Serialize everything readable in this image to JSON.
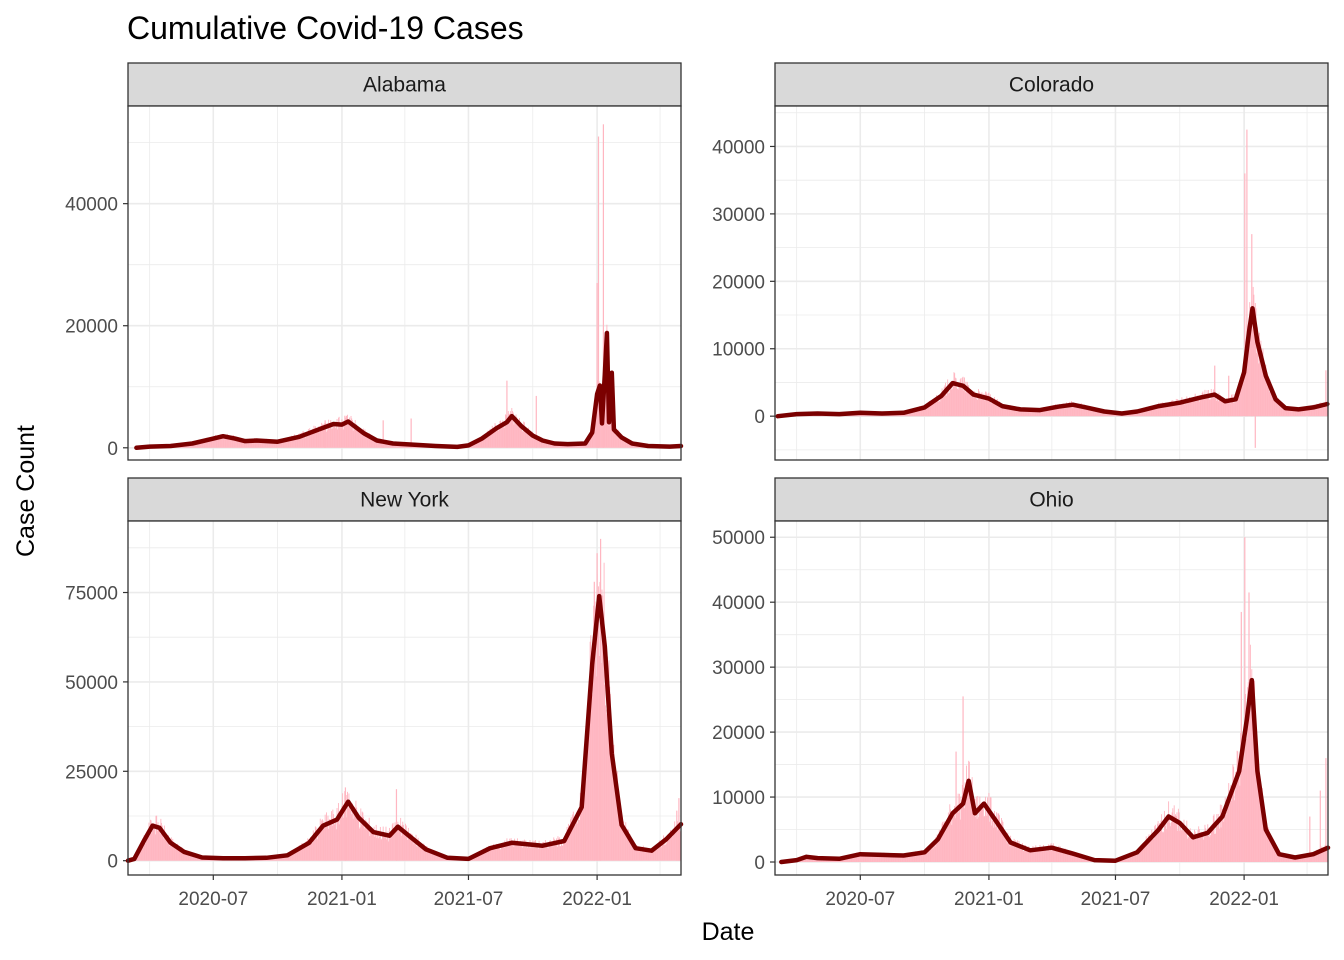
{
  "chart_data": {
    "type": "bar",
    "title": "Cumulative Covid-19 Cases",
    "xlabel": "Date",
    "ylabel": "Case Count",
    "grid": true,
    "legend": "none",
    "colors": {
      "bars": "#ffb6c1",
      "line": "#7b0000",
      "strip": "#d9d9d9",
      "grid": "#ebebeb"
    },
    "x_tick_labels": [
      "2020-07",
      "2021-01",
      "2021-07",
      "2022-01"
    ],
    "x_range": [
      "2020-03-01",
      "2022-05-01"
    ],
    "panels": [
      {
        "name": "Alabama",
        "ylim": [
          -2000,
          56000
        ],
        "y_ticks": [
          0,
          20000,
          40000
        ],
        "y_tick_labels": [
          "0",
          "20000",
          "40000"
        ],
        "smooth": [
          [
            "2020-03-13",
            0
          ],
          [
            "2020-04-01",
            200
          ],
          [
            "2020-05-01",
            300
          ],
          [
            "2020-06-01",
            700
          ],
          [
            "2020-07-01",
            1500
          ],
          [
            "2020-07-15",
            1900
          ],
          [
            "2020-08-01",
            1500
          ],
          [
            "2020-08-15",
            1100
          ],
          [
            "2020-09-01",
            1200
          ],
          [
            "2020-10-01",
            1000
          ],
          [
            "2020-11-01",
            1800
          ],
          [
            "2020-12-01",
            3100
          ],
          [
            "2020-12-20",
            3900
          ],
          [
            "2021-01-01",
            3800
          ],
          [
            "2021-01-10",
            4300
          ],
          [
            "2021-02-01",
            2400
          ],
          [
            "2021-02-20",
            1200
          ],
          [
            "2021-03-15",
            700
          ],
          [
            "2021-04-15",
            500
          ],
          [
            "2021-05-15",
            300
          ],
          [
            "2021-06-15",
            150
          ],
          [
            "2021-07-01",
            400
          ],
          [
            "2021-07-20",
            1500
          ],
          [
            "2021-08-10",
            3200
          ],
          [
            "2021-08-25",
            4200
          ],
          [
            "2021-09-01",
            5200
          ],
          [
            "2021-09-15",
            3500
          ],
          [
            "2021-10-01",
            2000
          ],
          [
            "2021-10-15",
            1200
          ],
          [
            "2021-11-01",
            700
          ],
          [
            "2021-11-20",
            600
          ],
          [
            "2021-12-15",
            700
          ],
          [
            "2021-12-25",
            2500
          ],
          [
            "2022-01-01",
            8800
          ],
          [
            "2022-01-05",
            10200
          ],
          [
            "2022-01-08",
            4000
          ],
          [
            "2022-01-12",
            12000
          ],
          [
            "2022-01-15",
            18800
          ],
          [
            "2022-01-18",
            4200
          ],
          [
            "2022-01-22",
            12300
          ],
          [
            "2022-01-25",
            3000
          ],
          [
            "2022-02-05",
            1700
          ],
          [
            "2022-02-20",
            700
          ],
          [
            "2022-03-15",
            300
          ],
          [
            "2022-04-15",
            200
          ],
          [
            "2022-05-01",
            300
          ]
        ],
        "spikes": [
          [
            "2022-01-03",
            51000
          ],
          [
            "2022-01-10",
            53000
          ],
          [
            "2022-01-01",
            27000
          ],
          [
            "2021-08-25",
            11000
          ],
          [
            "2021-10-06",
            8500
          ],
          [
            "2021-04-10",
            4800
          ],
          [
            "2021-03-01",
            4500
          ],
          [
            "2020-12-08",
            4500
          ]
        ]
      },
      {
        "name": "Colorado",
        "ylim": [
          -6500,
          46000
        ],
        "y_ticks": [
          0,
          10000,
          20000,
          30000,
          40000
        ],
        "y_tick_labels": [
          "0",
          "10000",
          "20000",
          "30000",
          "40000"
        ],
        "smooth": [
          [
            "2020-03-05",
            0
          ],
          [
            "2020-04-01",
            300
          ],
          [
            "2020-05-01",
            400
          ],
          [
            "2020-06-01",
            300
          ],
          [
            "2020-07-01",
            500
          ],
          [
            "2020-08-01",
            400
          ],
          [
            "2020-09-01",
            500
          ],
          [
            "2020-10-01",
            1300
          ],
          [
            "2020-10-25",
            3000
          ],
          [
            "2020-11-10",
            4900
          ],
          [
            "2020-11-25",
            4500
          ],
          [
            "2020-12-10",
            3200
          ],
          [
            "2021-01-01",
            2600
          ],
          [
            "2021-01-20",
            1500
          ],
          [
            "2021-02-15",
            1000
          ],
          [
            "2021-03-15",
            900
          ],
          [
            "2021-04-10",
            1400
          ],
          [
            "2021-05-01",
            1700
          ],
          [
            "2021-05-20",
            1300
          ],
          [
            "2021-06-15",
            700
          ],
          [
            "2021-07-10",
            400
          ],
          [
            "2021-08-01",
            700
          ],
          [
            "2021-09-01",
            1500
          ],
          [
            "2021-10-01",
            2000
          ],
          [
            "2021-11-01",
            2800
          ],
          [
            "2021-11-20",
            3200
          ],
          [
            "2021-12-05",
            2200
          ],
          [
            "2021-12-20",
            2500
          ],
          [
            "2022-01-01",
            6500
          ],
          [
            "2022-01-08",
            12500
          ],
          [
            "2022-01-13",
            16000
          ],
          [
            "2022-01-20",
            11000
          ],
          [
            "2022-02-01",
            6000
          ],
          [
            "2022-02-15",
            2500
          ],
          [
            "2022-03-01",
            1200
          ],
          [
            "2022-03-20",
            1000
          ],
          [
            "2022-04-10",
            1300
          ],
          [
            "2022-04-30",
            1800
          ]
        ],
        "spikes": [
          [
            "2022-01-05",
            42500
          ],
          [
            "2022-01-02",
            36000
          ],
          [
            "2022-01-12",
            27000
          ],
          [
            "2022-01-17",
            -4700
          ],
          [
            "2021-11-20",
            7500
          ],
          [
            "2022-04-28",
            6800
          ],
          [
            "2021-12-10",
            6000
          ]
        ]
      },
      {
        "name": "New York",
        "ylim": [
          -4000,
          95000
        ],
        "y_ticks": [
          0,
          25000,
          50000,
          75000
        ],
        "y_tick_labels": [
          "0",
          "25000",
          "50000",
          "75000"
        ],
        "smooth": [
          [
            "2020-03-01",
            0
          ],
          [
            "2020-03-10",
            500
          ],
          [
            "2020-03-25",
            6000
          ],
          [
            "2020-04-05",
            9800
          ],
          [
            "2020-04-15",
            9200
          ],
          [
            "2020-05-01",
            5000
          ],
          [
            "2020-05-20",
            2500
          ],
          [
            "2020-06-15",
            900
          ],
          [
            "2020-07-15",
            700
          ],
          [
            "2020-08-15",
            700
          ],
          [
            "2020-09-15",
            800
          ],
          [
            "2020-10-15",
            1500
          ],
          [
            "2020-11-15",
            5000
          ],
          [
            "2020-12-05",
            9800
          ],
          [
            "2020-12-25",
            11500
          ],
          [
            "2021-01-10",
            16500
          ],
          [
            "2021-01-25",
            12000
          ],
          [
            "2021-02-15",
            8000
          ],
          [
            "2021-03-10",
            7000
          ],
          [
            "2021-03-22",
            9500
          ],
          [
            "2021-04-10",
            6500
          ],
          [
            "2021-05-01",
            3200
          ],
          [
            "2021-06-01",
            800
          ],
          [
            "2021-07-01",
            500
          ],
          [
            "2021-08-01",
            3500
          ],
          [
            "2021-09-01",
            5000
          ],
          [
            "2021-10-15",
            4200
          ],
          [
            "2021-11-15",
            5500
          ],
          [
            "2021-12-10",
            15000
          ],
          [
            "2021-12-25",
            55000
          ],
          [
            "2022-01-04",
            74000
          ],
          [
            "2022-01-12",
            60000
          ],
          [
            "2022-01-22",
            30000
          ],
          [
            "2022-02-05",
            10000
          ],
          [
            "2022-02-25",
            3500
          ],
          [
            "2022-03-20",
            2800
          ],
          [
            "2022-04-10",
            6000
          ],
          [
            "2022-05-01",
            10200
          ]
        ],
        "spikes": [
          [
            "2022-01-01",
            86000
          ],
          [
            "2022-01-06",
            90000
          ],
          [
            "2021-12-28",
            78000
          ],
          [
            "2021-01-06",
            20500
          ],
          [
            "2021-03-20",
            20000
          ],
          [
            "2022-04-28",
            17500
          ],
          [
            "2022-04-25",
            14000
          ]
        ]
      },
      {
        "name": "Ohio",
        "ylim": [
          -2000,
          52500
        ],
        "y_ticks": [
          0,
          10000,
          20000,
          30000,
          40000,
          50000
        ],
        "y_tick_labels": [
          "0",
          "10000",
          "20000",
          "30000",
          "40000",
          "50000"
        ],
        "smooth": [
          [
            "2020-03-10",
            0
          ],
          [
            "2020-04-01",
            300
          ],
          [
            "2020-04-15",
            800
          ],
          [
            "2020-05-01",
            600
          ],
          [
            "2020-06-01",
            500
          ],
          [
            "2020-07-01",
            1200
          ],
          [
            "2020-08-01",
            1100
          ],
          [
            "2020-09-01",
            1000
          ],
          [
            "2020-10-01",
            1500
          ],
          [
            "2020-10-20",
            3500
          ],
          [
            "2020-11-10",
            7500
          ],
          [
            "2020-11-25",
            9000
          ],
          [
            "2020-12-03",
            12500
          ],
          [
            "2020-12-12",
            7500
          ],
          [
            "2020-12-25",
            9000
          ],
          [
            "2021-01-10",
            6500
          ],
          [
            "2021-02-01",
            3000
          ],
          [
            "2021-03-01",
            1800
          ],
          [
            "2021-04-01",
            2200
          ],
          [
            "2021-05-01",
            1300
          ],
          [
            "2021-06-01",
            300
          ],
          [
            "2021-07-01",
            200
          ],
          [
            "2021-08-01",
            1500
          ],
          [
            "2021-09-01",
            5000
          ],
          [
            "2021-09-15",
            7000
          ],
          [
            "2021-10-01",
            6000
          ],
          [
            "2021-10-20",
            3800
          ],
          [
            "2021-11-10",
            4500
          ],
          [
            "2021-12-01",
            7000
          ],
          [
            "2021-12-25",
            14000
          ],
          [
            "2022-01-05",
            22000
          ],
          [
            "2022-01-12",
            28000
          ],
          [
            "2022-01-20",
            14000
          ],
          [
            "2022-02-01",
            5000
          ],
          [
            "2022-02-20",
            1200
          ],
          [
            "2022-03-15",
            700
          ],
          [
            "2022-04-10",
            1200
          ],
          [
            "2022-05-01",
            2200
          ]
        ],
        "spikes": [
          [
            "2022-01-02",
            50000
          ],
          [
            "2022-01-08",
            41500
          ],
          [
            "2021-12-28",
            38500
          ],
          [
            "2020-11-25",
            25500
          ],
          [
            "2020-11-15",
            17000
          ],
          [
            "2022-04-28",
            16000
          ],
          [
            "2022-04-20",
            11000
          ],
          [
            "2022-04-05",
            7000
          ]
        ]
      }
    ]
  }
}
